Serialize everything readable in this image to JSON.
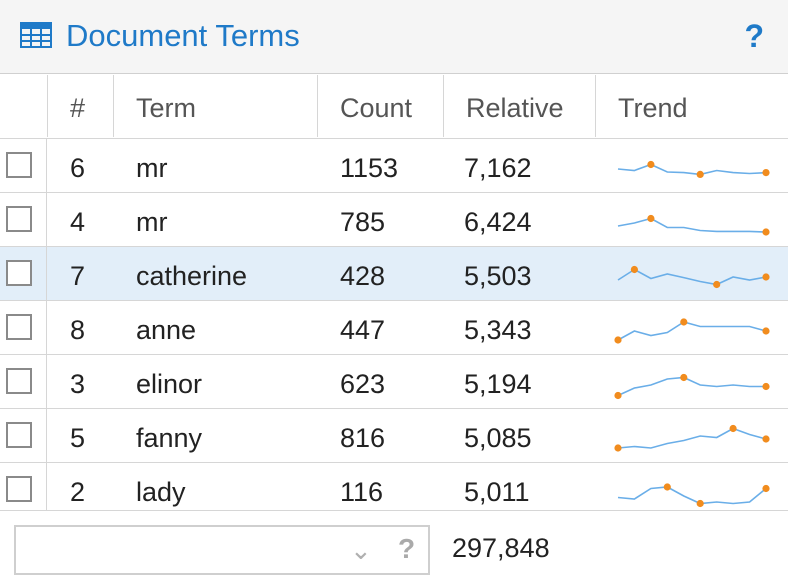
{
  "panel": {
    "title": "Document Terms",
    "icon": "table-icon",
    "help": "?",
    "accent_color": "#1f7ac8"
  },
  "columns": {
    "num": "#",
    "term": "Term",
    "count": "Count",
    "relative": "Relative",
    "trend": "Trend"
  },
  "rows": [
    {
      "num": "6",
      "term": "mr",
      "count": "1153",
      "relative": "7,162",
      "selected": false,
      "trend": [
        0.4,
        0.35,
        0.55,
        0.3,
        0.28,
        0.22,
        0.35,
        0.28,
        0.25,
        0.28
      ],
      "markers": [
        2,
        5,
        9
      ]
    },
    {
      "num": "4",
      "term": "mr",
      "count": "785",
      "relative": "6,424",
      "selected": false,
      "trend": [
        0.3,
        0.4,
        0.55,
        0.25,
        0.25,
        0.15,
        0.12,
        0.12,
        0.12,
        0.1
      ],
      "markers": [
        2,
        9
      ]
    },
    {
      "num": "7",
      "term": "catherine",
      "count": "428",
      "relative": "5,503",
      "selected": true,
      "trend": [
        0.3,
        0.65,
        0.35,
        0.5,
        0.38,
        0.25,
        0.15,
        0.4,
        0.3,
        0.4
      ],
      "markers": [
        1,
        6,
        9
      ]
    },
    {
      "num": "8",
      "term": "anne",
      "count": "447",
      "relative": "5,343",
      "selected": false,
      "trend": [
        0.1,
        0.4,
        0.25,
        0.35,
        0.7,
        0.55,
        0.55,
        0.55,
        0.55,
        0.4
      ],
      "markers": [
        0,
        4,
        9
      ]
    },
    {
      "num": "3",
      "term": "elinor",
      "count": "623",
      "relative": "5,194",
      "selected": false,
      "trend": [
        0.05,
        0.3,
        0.4,
        0.6,
        0.65,
        0.4,
        0.35,
        0.4,
        0.35,
        0.35
      ],
      "markers": [
        0,
        4,
        9
      ]
    },
    {
      "num": "5",
      "term": "fanny",
      "count": "816",
      "relative": "5,085",
      "selected": false,
      "trend": [
        0.1,
        0.15,
        0.1,
        0.25,
        0.35,
        0.5,
        0.45,
        0.75,
        0.55,
        0.4
      ],
      "markers": [
        0,
        7,
        9
      ]
    },
    {
      "num": "2",
      "term": "lady",
      "count": "116",
      "relative": "5,011",
      "selected": false,
      "trend": [
        0.25,
        0.2,
        0.55,
        0.6,
        0.3,
        0.05,
        0.1,
        0.05,
        0.1,
        0.55
      ],
      "markers": [
        3,
        5,
        9
      ]
    }
  ],
  "footer": {
    "select_value": "",
    "select_help": "?",
    "total": "297,848"
  },
  "colors": {
    "trend_line": "#6aaee8",
    "trend_marker": "#f18c1e",
    "selected_row": "#e2eef9"
  }
}
